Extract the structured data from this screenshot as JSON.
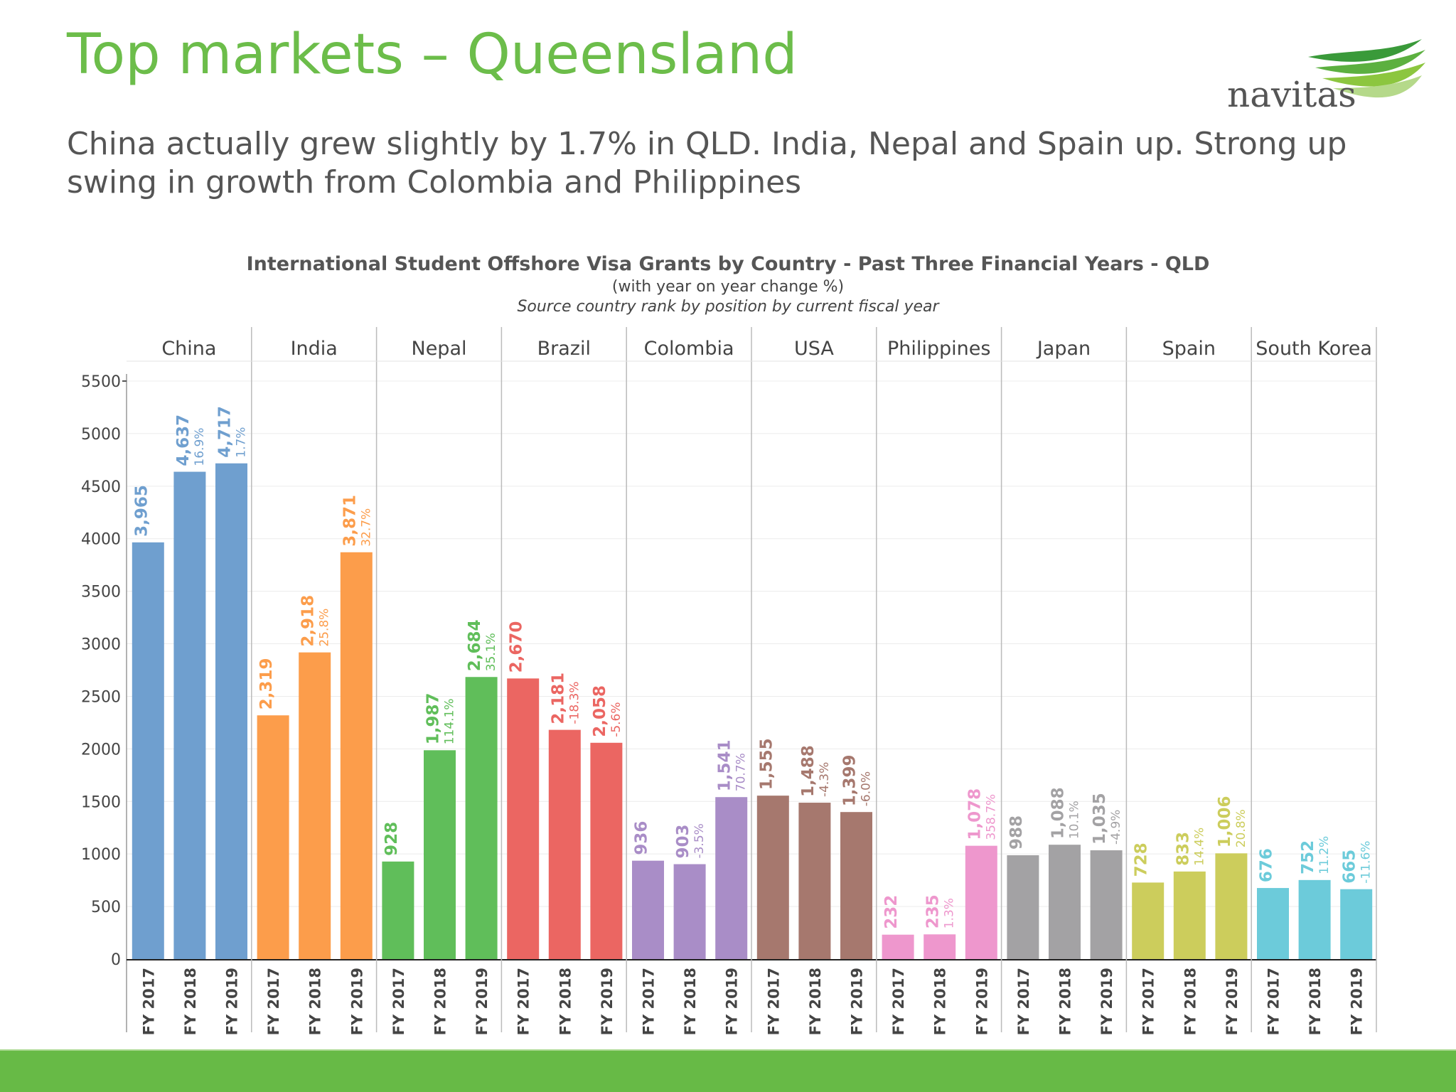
{
  "slide": {
    "title": "Top markets – Queensland",
    "subtitle": "China actually grew slightly by 1.7% in QLD. India, Nepal and Spain up. Strong up swing in growth from Colombia and Philippines"
  },
  "logo": {
    "text": "navitas",
    "icon": "navitas-swoosh-logo",
    "colors": [
      "#3a9a3a",
      "#8cc63f"
    ]
  },
  "colors": {
    "title": "#6cbd4a",
    "footer_bar": "#67ba46"
  },
  "chart_data": {
    "type": "bar",
    "title": "International Student Offshore Visa Grants by Country - Past Three Financial Years - QLD",
    "subtitle": "(with year on year change %)",
    "note": "Source country rank by position by current fiscal year",
    "ylim": [
      0,
      5500
    ],
    "yticks": [
      0,
      500,
      1000,
      1500,
      2000,
      2500,
      3000,
      3500,
      4000,
      4500,
      5000,
      5500
    ],
    "grid": true,
    "facets": [
      {
        "name": "China",
        "color": "#6f9fcf",
        "bars": [
          {
            "year": "FY 2017",
            "value": 3965,
            "label": "3,965",
            "change": ""
          },
          {
            "year": "FY 2018",
            "value": 4637,
            "label": "4,637",
            "change": "16.9%"
          },
          {
            "year": "FY 2019",
            "value": 4717,
            "label": "4,717",
            "change": "1.7%"
          }
        ]
      },
      {
        "name": "India",
        "color": "#fc9d4b",
        "bars": [
          {
            "year": "FY 2017",
            "value": 2319,
            "label": "2,319",
            "change": ""
          },
          {
            "year": "FY 2018",
            "value": 2918,
            "label": "2,918",
            "change": "25.8%"
          },
          {
            "year": "FY 2019",
            "value": 3871,
            "label": "3,871",
            "change": "32.7%"
          }
        ]
      },
      {
        "name": "Nepal",
        "color": "#60be5a",
        "bars": [
          {
            "year": "FY 2017",
            "value": 928,
            "label": "928",
            "change": ""
          },
          {
            "year": "FY 2018",
            "value": 1987,
            "label": "1,987",
            "change": "114.1%"
          },
          {
            "year": "FY 2019",
            "value": 2684,
            "label": "2,684",
            "change": "35.1%"
          }
        ]
      },
      {
        "name": "Brazil",
        "color": "#eb6662",
        "bars": [
          {
            "year": "FY 2017",
            "value": 2670,
            "label": "2,670",
            "change": ""
          },
          {
            "year": "FY 2018",
            "value": 2181,
            "label": "2,181",
            "change": "-18.3%"
          },
          {
            "year": "FY 2019",
            "value": 2058,
            "label": "2,058",
            "change": "-5.6%"
          }
        ]
      },
      {
        "name": "Colombia",
        "color": "#a98dc7",
        "bars": [
          {
            "year": "FY 2017",
            "value": 936,
            "label": "936",
            "change": ""
          },
          {
            "year": "FY 2018",
            "value": 903,
            "label": "903",
            "change": "-3.5%"
          },
          {
            "year": "FY 2019",
            "value": 1541,
            "label": "1,541",
            "change": "70.7%"
          }
        ]
      },
      {
        "name": "USA",
        "color": "#a6786e",
        "bars": [
          {
            "year": "FY 2017",
            "value": 1555,
            "label": "1,555",
            "change": ""
          },
          {
            "year": "FY 2018",
            "value": 1488,
            "label": "1,488",
            "change": "-4.3%"
          },
          {
            "year": "FY 2019",
            "value": 1399,
            "label": "1,399",
            "change": "-6.0%"
          }
        ]
      },
      {
        "name": "Philippines",
        "color": "#ee97cd",
        "bars": [
          {
            "year": "FY 2017",
            "value": 232,
            "label": "232",
            "change": ""
          },
          {
            "year": "FY 2018",
            "value": 235,
            "label": "235",
            "change": "1.3%"
          },
          {
            "year": "FY 2019",
            "value": 1078,
            "label": "1,078",
            "change": "358.7%"
          }
        ]
      },
      {
        "name": "Japan",
        "color": "#a3a2a4",
        "bars": [
          {
            "year": "FY 2017",
            "value": 988,
            "label": "988",
            "change": ""
          },
          {
            "year": "FY 2018",
            "value": 1088,
            "label": "1,088",
            "change": "10.1%"
          },
          {
            "year": "FY 2019",
            "value": 1035,
            "label": "1,035",
            "change": "-4.9%"
          }
        ]
      },
      {
        "name": "Spain",
        "color": "#cccd5c",
        "bars": [
          {
            "year": "FY 2017",
            "value": 728,
            "label": "728",
            "change": ""
          },
          {
            "year": "FY 2018",
            "value": 833,
            "label": "833",
            "change": "14.4%"
          },
          {
            "year": "FY 2019",
            "value": 1006,
            "label": "1,006",
            "change": "20.8%"
          }
        ]
      },
      {
        "name": "South Korea",
        "color": "#6ccbda",
        "bars": [
          {
            "year": "FY 2017",
            "value": 676,
            "label": "676",
            "change": ""
          },
          {
            "year": "FY 2018",
            "value": 752,
            "label": "752",
            "change": "11.2%"
          },
          {
            "year": "FY 2019",
            "value": 665,
            "label": "665",
            "change": "-11.6%"
          }
        ]
      }
    ]
  }
}
